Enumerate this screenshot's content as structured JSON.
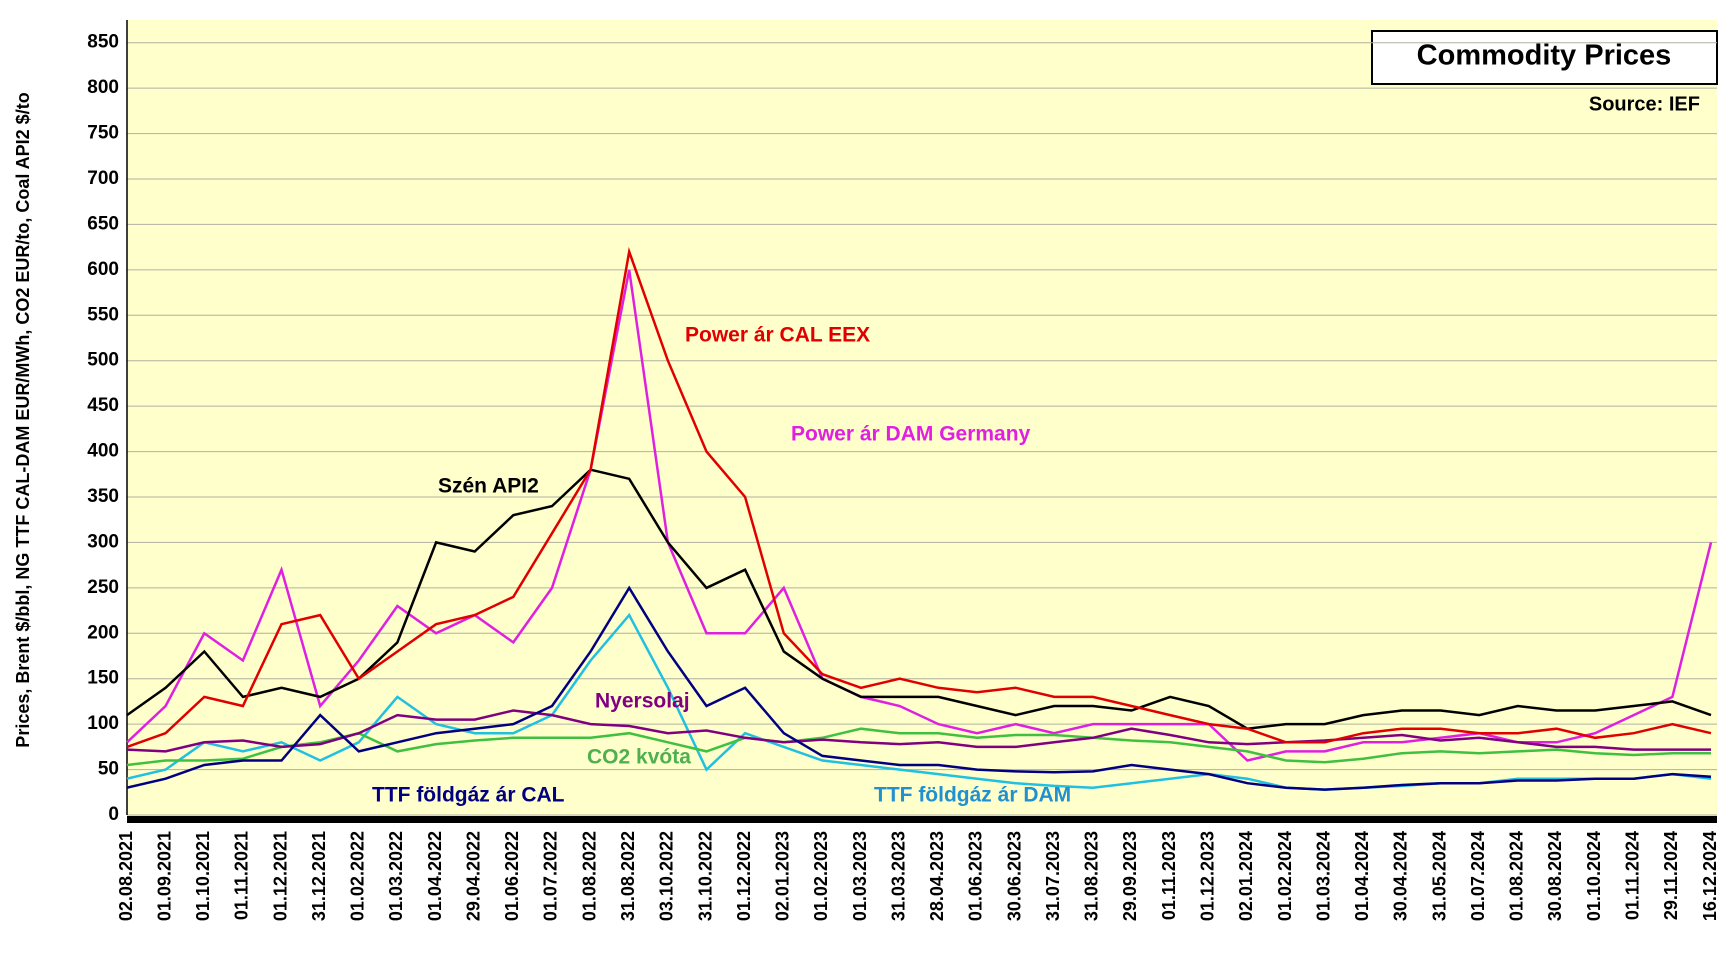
{
  "chart_data": {
    "type": "line",
    "title": "Commodity Prices",
    "subtitle": "Source:  IEF",
    "y_label": "Prices, Brent $/bbl, NG TTF CAL-DAM EUR/MWh, CO2 EUR/to, Coal API2 $/to",
    "categories": [
      "02.08.2021",
      "01.09.2021",
      "01.10.2021",
      "01.11.2021",
      "01.12.2021",
      "31.12.2021",
      "01.02.2022",
      "01.03.2022",
      "01.04.2022",
      "29.04.2022",
      "01.06.2022",
      "01.07.2022",
      "01.08.2022",
      "31.08.2022",
      "03.10.2022",
      "31.10.2022",
      "01.12.2022",
      "02.01.2023",
      "01.02.2023",
      "01.03.2023",
      "31.03.2023",
      "28.04.2023",
      "01.06.2023",
      "30.06.2023",
      "31.07.2023",
      "31.08.2023",
      "29.09.2023",
      "01.11.2023",
      "01.12.2023",
      "02.01.2024",
      "01.02.2024",
      "01.03.2024",
      "01.04.2024",
      "30.04.2024",
      "31.05.2024",
      "01.07.2024",
      "01.08.2024",
      "30.08.2024",
      "01.10.2024",
      "01.11.2024",
      "29.11.2024",
      "16.12.2024"
    ],
    "series": [
      {
        "name": "TTF földgáz ár DAM",
        "color": "#20c0e0",
        "values": [
          40,
          50,
          80,
          70,
          80,
          60,
          80,
          130,
          100,
          90,
          90,
          110,
          170,
          220,
          140,
          50,
          90,
          75,
          60,
          55,
          50,
          45,
          40,
          35,
          32,
          30,
          35,
          40,
          45,
          40,
          30,
          28,
          30,
          32,
          35,
          35,
          40,
          40,
          40,
          40,
          45,
          40
        ]
      },
      {
        "name": "Power ár DAM Germany",
        "color": "#e020e0",
        "values": [
          80,
          120,
          200,
          170,
          270,
          120,
          170,
          230,
          200,
          220,
          190,
          250,
          380,
          600,
          300,
          200,
          200,
          250,
          150,
          130,
          120,
          100,
          90,
          100,
          90,
          100,
          100,
          100,
          100,
          60,
          70,
          70,
          80,
          80,
          85,
          90,
          80,
          80,
          90,
          110,
          130,
          300
        ]
      },
      {
        "name": "CO2 kvóta",
        "color": "#40c040",
        "values": [
          55,
          60,
          60,
          62,
          75,
          80,
          90,
          70,
          78,
          82,
          85,
          85,
          85,
          90,
          80,
          70,
          85,
          80,
          85,
          95,
          90,
          90,
          85,
          88,
          88,
          85,
          82,
          80,
          75,
          70,
          60,
          58,
          62,
          68,
          70,
          68,
          70,
          72,
          68,
          66,
          68,
          68
        ]
      },
      {
        "name": "Nyersolaj",
        "color": "#800080",
        "values": [
          72,
          70,
          80,
          82,
          75,
          78,
          90,
          110,
          105,
          105,
          115,
          110,
          100,
          98,
          90,
          93,
          85,
          80,
          83,
          80,
          78,
          80,
          75,
          75,
          80,
          85,
          95,
          88,
          80,
          78,
          80,
          82,
          85,
          88,
          82,
          85,
          80,
          75,
          75,
          72,
          72,
          72
        ]
      },
      {
        "name": "Szén API2",
        "color": "#000000",
        "values": [
          110,
          140,
          180,
          130,
          140,
          130,
          150,
          190,
          300,
          290,
          330,
          340,
          380,
          370,
          300,
          250,
          270,
          180,
          150,
          130,
          130,
          130,
          120,
          110,
          120,
          120,
          115,
          130,
          120,
          95,
          100,
          100,
          110,
          115,
          115,
          110,
          120,
          115,
          115,
          120,
          125,
          110
        ]
      },
      {
        "name": "TTF földgáz ár CAL",
        "color": "#000080",
        "values": [
          30,
          40,
          55,
          60,
          60,
          110,
          70,
          80,
          90,
          95,
          100,
          120,
          180,
          250,
          180,
          120,
          140,
          90,
          65,
          60,
          55,
          55,
          50,
          48,
          47,
          48,
          55,
          50,
          45,
          35,
          30,
          28,
          30,
          33,
          35,
          35,
          38,
          38,
          40,
          40,
          45,
          42
        ]
      },
      {
        "name": "Power ár CAL EEX",
        "color": "#e00000",
        "values": [
          75,
          90,
          130,
          120,
          210,
          220,
          150,
          180,
          210,
          220,
          240,
          310,
          380,
          620,
          500,
          400,
          350,
          200,
          155,
          140,
          150,
          140,
          135,
          140,
          130,
          130,
          120,
          110,
          100,
          95,
          80,
          80,
          90,
          95,
          95,
          90,
          90,
          95,
          85,
          90,
          100,
          90
        ]
      }
    ],
    "ylim": [
      0,
      875
    ],
    "yticks": [
      0,
      50,
      100,
      150,
      200,
      250,
      300,
      350,
      400,
      450,
      500,
      550,
      600,
      650,
      700,
      750,
      800,
      850
    ],
    "grid": true
  }
}
